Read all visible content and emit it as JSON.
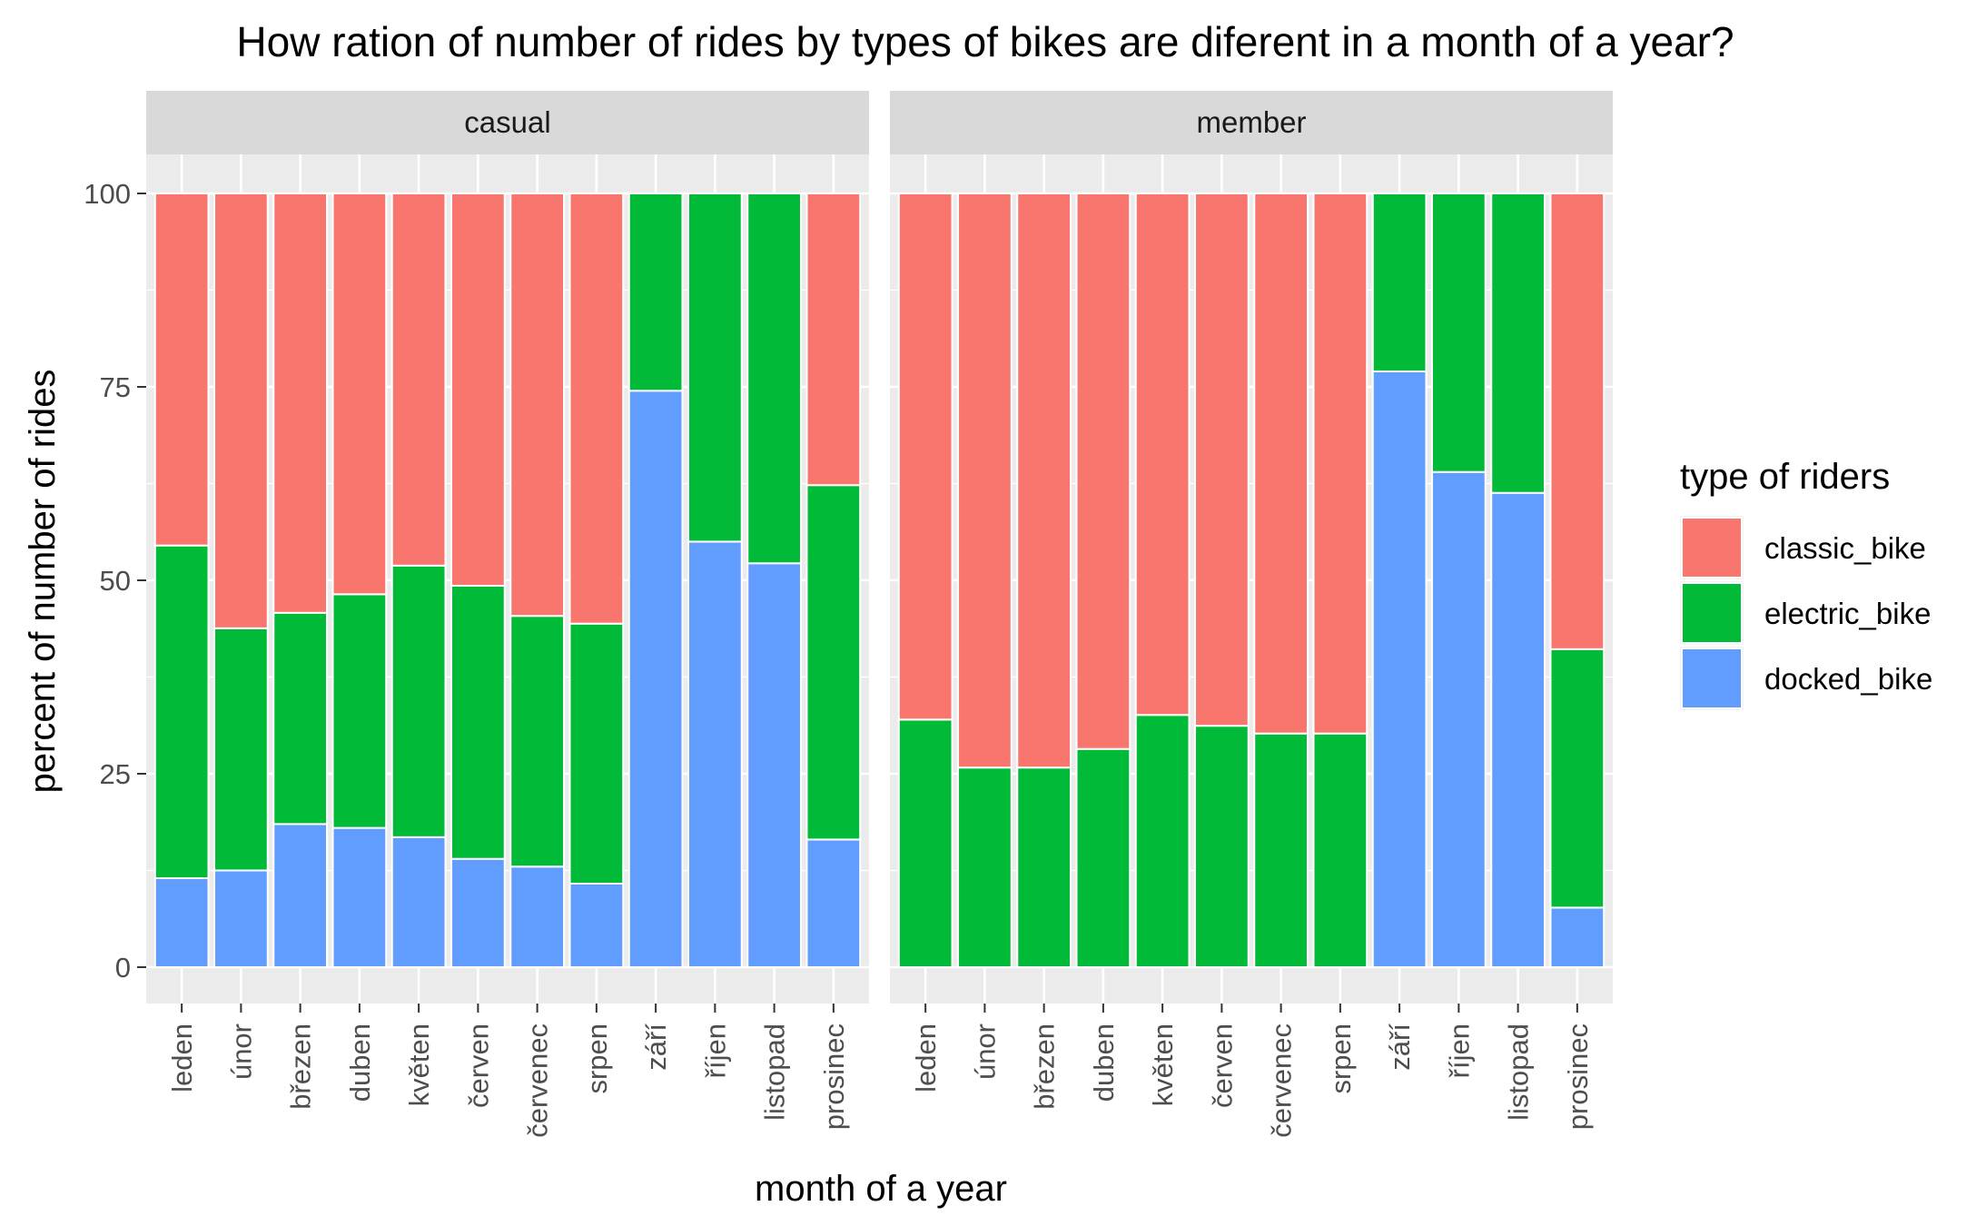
{
  "chart_data": {
    "type": "bar",
    "stacked": true,
    "title": "How ration of number of rides by types of bikes are diferent in a month of a year?",
    "xlabel": "month of a year",
    "ylabel": "percent of number of rides",
    "ylim": [
      0,
      100
    ],
    "yticks": [
      0,
      25,
      50,
      75,
      100
    ],
    "grid": true,
    "legend_position": "right",
    "categories": [
      "leden",
      "únor",
      "březen",
      "duben",
      "květen",
      "červen",
      "červenec",
      "srpen",
      "září",
      "říjen",
      "listopad",
      "prosinec"
    ],
    "legend": {
      "title": "type of riders",
      "entries": [
        {
          "name": "classic_bike",
          "color": "#F8766D"
        },
        {
          "name": "electric_bike",
          "color": "#00BA38"
        },
        {
          "name": "docked_bike",
          "color": "#619CFF"
        }
      ]
    },
    "panels": [
      {
        "label": "casual",
        "series": [
          {
            "name": "docked_bike",
            "values": [
              11.5,
              12.5,
              18.5,
              18.0,
              16.8,
              14.0,
              13.0,
              10.8,
              74.5,
              55.0,
              52.2,
              16.5
            ]
          },
          {
            "name": "electric_bike",
            "values": [
              43.0,
              31.3,
              27.3,
              30.2,
              35.1,
              35.3,
              32.4,
              33.6,
              25.5,
              45.0,
              47.8,
              45.8
            ]
          },
          {
            "name": "classic_bike",
            "values": [
              45.5,
              56.2,
              54.2,
              51.8,
              48.1,
              50.7,
              54.6,
              55.6,
              0,
              0,
              0,
              37.7
            ]
          }
        ]
      },
      {
        "label": "member",
        "series": [
          {
            "name": "docked_bike",
            "values": [
              0,
              0,
              0,
              0,
              0,
              0,
              0,
              0,
              77.0,
              64.0,
              61.3,
              7.7
            ]
          },
          {
            "name": "electric_bike",
            "values": [
              32.0,
              25.8,
              25.8,
              28.2,
              32.6,
              31.2,
              30.2,
              30.2,
              23.0,
              36.0,
              38.7,
              33.4
            ]
          },
          {
            "name": "classic_bike",
            "values": [
              68.0,
              74.2,
              74.2,
              71.8,
              67.4,
              68.8,
              69.8,
              69.8,
              0,
              0,
              0,
              58.9
            ]
          }
        ]
      }
    ]
  }
}
